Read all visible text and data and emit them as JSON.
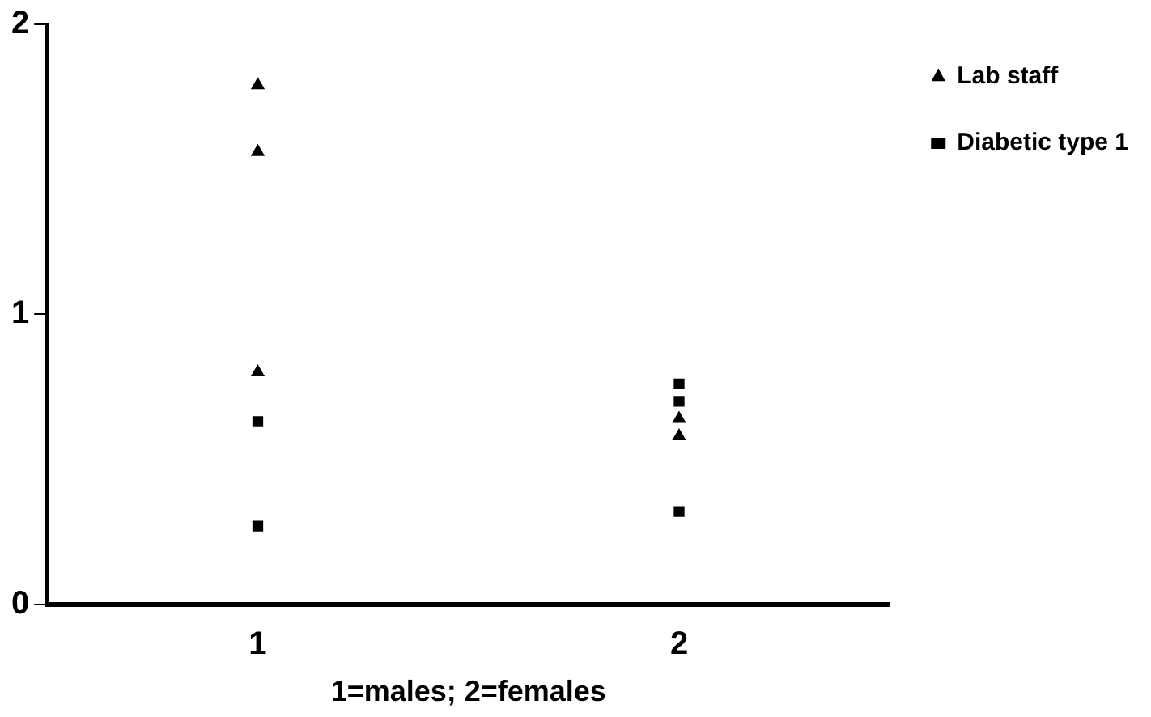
{
  "chart_data": {
    "type": "scatter",
    "xlabel": "1=males; 2=females",
    "categories": [
      "1",
      "2"
    ],
    "ylim": [
      0,
      2
    ],
    "yticks": [
      0,
      1,
      2
    ],
    "grid": false,
    "legend": "top right",
    "series": [
      {
        "name": "Lab staff",
        "color": "#000000",
        "marker": "triangle",
        "x": [
          "1",
          "1",
          "1",
          "2",
          "2"
        ],
        "values": [
          1.79,
          1.56,
          0.8,
          0.64,
          0.58
        ]
      },
      {
        "name": "Diabetic type 1",
        "color": "#000000",
        "marker": "square",
        "x": [
          "1",
          "1",
          "2",
          "2",
          "2"
        ],
        "values": [
          0.63,
          0.27,
          0.76,
          0.7,
          0.32
        ]
      }
    ]
  }
}
